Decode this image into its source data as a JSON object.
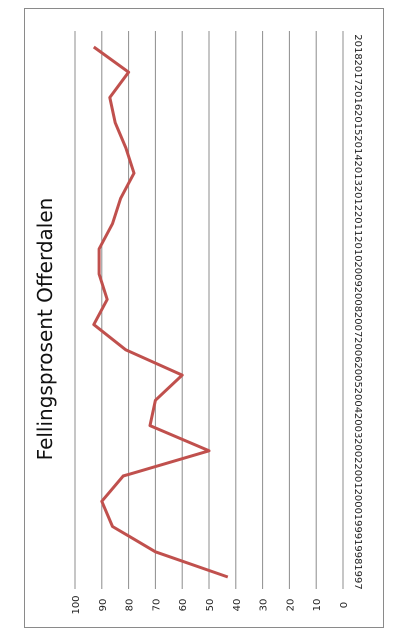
{
  "chart_data": {
    "type": "line",
    "title": "Fellingsprosent Offerdalen",
    "orientation": "rotated-90-clockwise",
    "x": [
      "1997",
      "1998",
      "1999",
      "2000",
      "2001",
      "2002",
      "2003",
      "2004",
      "2005",
      "2006",
      "2007",
      "2008",
      "2009",
      "2010",
      "2011",
      "2012",
      "2013",
      "2014",
      "2015",
      "2016",
      "2017",
      "2018"
    ],
    "series": [
      {
        "color": "#c0504d",
        "values": [
          43,
          70,
          86,
          90,
          82,
          50,
          72,
          70,
          60,
          81,
          93,
          88,
          91,
          91,
          86,
          83,
          78,
          81,
          85,
          87,
          80,
          93
        ]
      }
    ],
    "ylim": [
      0,
      100
    ],
    "y_ticks": [
      "0",
      "10",
      "20",
      "30",
      "40",
      "50",
      "60",
      "70",
      "80",
      "90",
      "100"
    ],
    "grid": true,
    "legend": "none"
  }
}
